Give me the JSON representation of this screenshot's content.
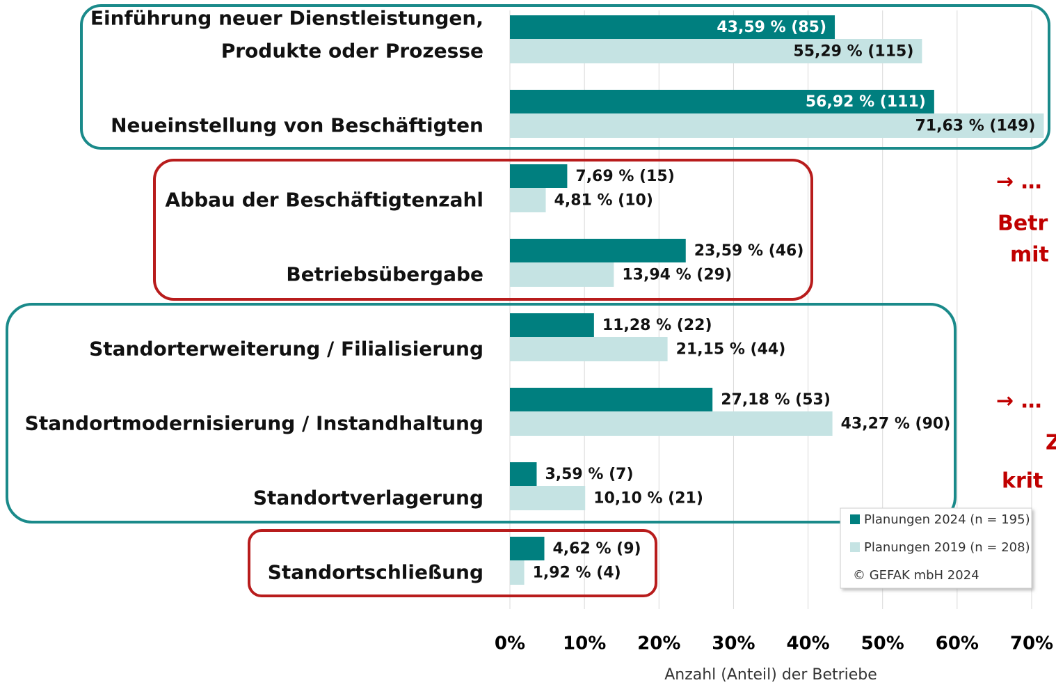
{
  "chart_data": {
    "type": "bar",
    "orientation": "horizontal",
    "categories": [
      "Einführung neuer Dienstleistungen,\nProdukte oder Prozesse",
      "Neueinstellung von Beschäftigten",
      "Abbau der Beschäftigtenzahl",
      "Betriebsübergabe",
      "Standorterweiterung / Filialisierung",
      "Standortmodernisierung / Instandhaltung",
      "Standortverlagerung",
      "Standortschließung"
    ],
    "series": [
      {
        "name": "Planungen 2024 (n = 195)",
        "color": "#007f7f",
        "values": [
          43.59,
          56.92,
          7.69,
          23.59,
          11.28,
          27.18,
          3.59,
          4.62
        ],
        "value_labels": [
          "43,59 % (85)",
          "56,92 % (111)",
          "7,69 % (15)",
          "23,59 % (46)",
          "11,28 % (22)",
          "27,18 % (53)",
          "3,59 % (7)",
          "4,62 % (9)"
        ]
      },
      {
        "name": "Planungen 2019 (n = 208)",
        "color": "#c5e3e3",
        "values": [
          55.29,
          71.63,
          4.81,
          13.94,
          21.15,
          43.27,
          10.1,
          1.92
        ],
        "value_labels": [
          "55,29 % (115)",
          "71,63 % (149)",
          "4,81 % (10)",
          "13,94 % (29)",
          "21,15 % (44)",
          "43,27 % (90)",
          "10,10 % (21)",
          "1,92 % (4)"
        ]
      }
    ],
    "xlabel": "Anzahl (Anteil) der Betriebe",
    "xlim": [
      0,
      70
    ],
    "xticks": [
      {
        "value": 0,
        "label": "0%"
      },
      {
        "value": 10,
        "label": "10%"
      },
      {
        "value": 20,
        "label": "20%"
      },
      {
        "value": 30,
        "label": "30%"
      },
      {
        "value": 40,
        "label": "40%"
      },
      {
        "value": 50,
        "label": "50%"
      },
      {
        "value": 60,
        "label": "60%"
      },
      {
        "value": 70,
        "label": "70%"
      }
    ],
    "grid": true,
    "legend": "lower right",
    "credit": "© GEFAK mbH 2024",
    "annotations": [
      "→ …",
      "Betr",
      "mit",
      "→ …",
      "Z",
      "krit"
    ],
    "annotation_color": "#c00000"
  }
}
